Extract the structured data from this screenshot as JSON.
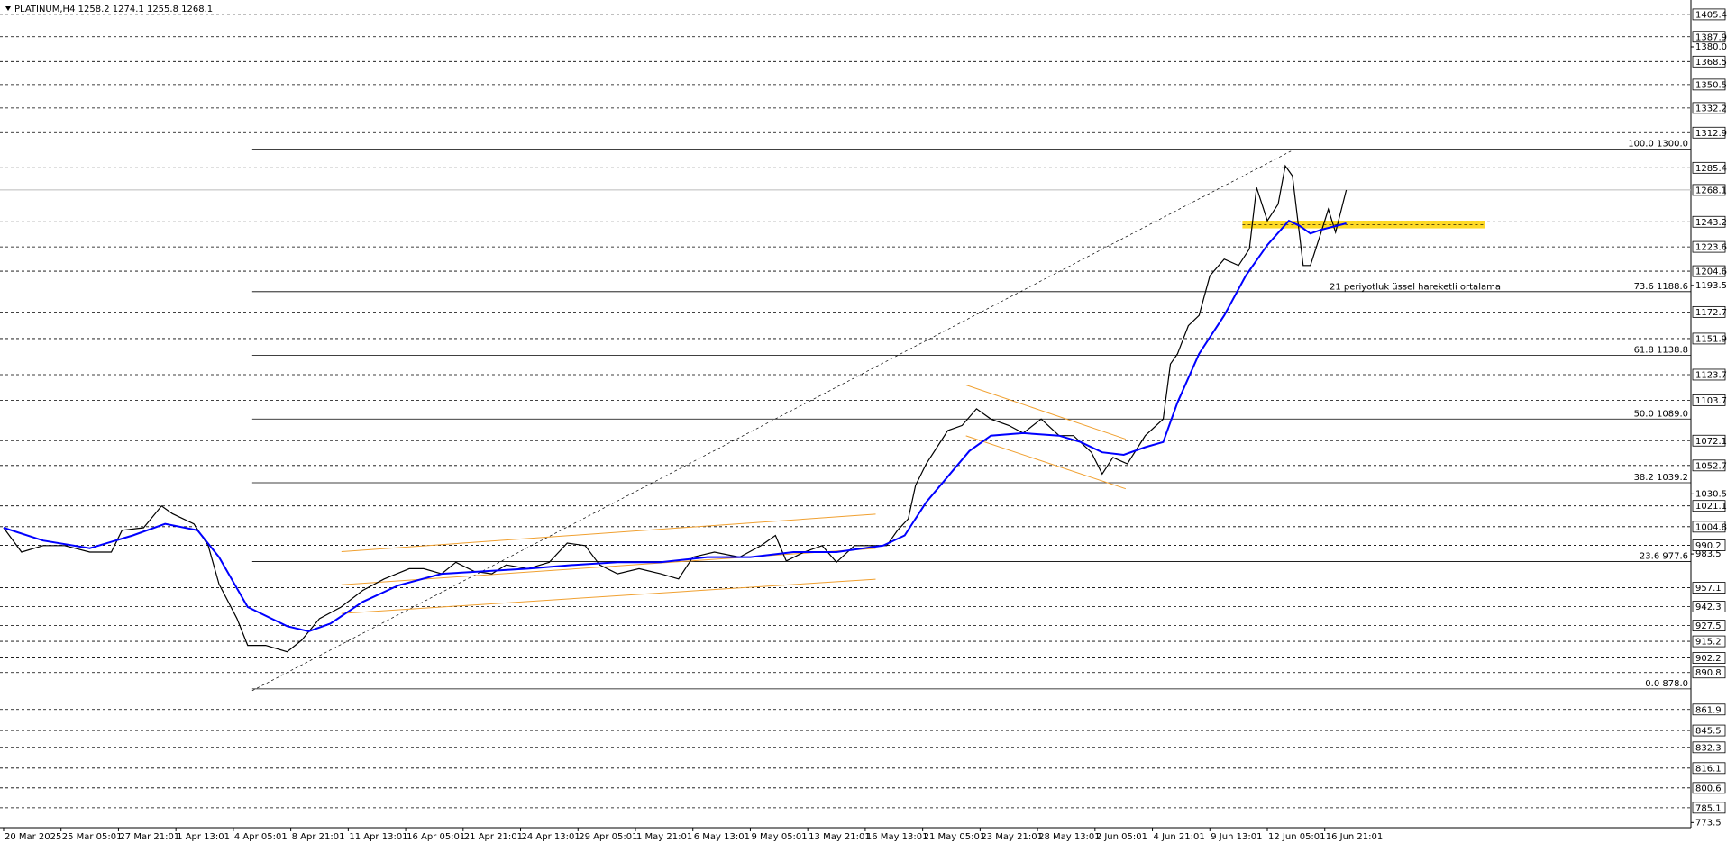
{
  "chart_data": {
    "type": "line",
    "title": "PLATINUM,H4  1258.2 1274.1 1255.8 1268.1",
    "annotation": "21 periyotluk üssel hareketli ortalama",
    "xlim": [
      -1,
      470
    ],
    "xticks": [
      {
        "value": 0,
        "label": "20 Mar 2025"
      },
      {
        "value": 16,
        "label": "25 Mar 05:01"
      },
      {
        "value": 32,
        "label": "27 Mar 21:01"
      },
      {
        "value": 48,
        "label": "1 Apr 13:01"
      },
      {
        "value": 64,
        "label": "4 Apr 05:01"
      },
      {
        "value": 80,
        "label": "8 Apr 21:01"
      },
      {
        "value": 96,
        "label": "11 Apr 13:01"
      },
      {
        "value": 112,
        "label": "16 Apr 05:01"
      },
      {
        "value": 128,
        "label": "21 Apr 21:01"
      },
      {
        "value": 144,
        "label": "24 Apr 13:01"
      },
      {
        "value": 160,
        "label": "29 Apr 05:01"
      },
      {
        "value": 176,
        "label": "1 May 21:01"
      },
      {
        "value": 192,
        "label": "6 May 13:01"
      },
      {
        "value": 208,
        "label": "9 May 05:01"
      },
      {
        "value": 224,
        "label": "13 May 21:01"
      },
      {
        "value": 240,
        "label": "16 May 13:01"
      },
      {
        "value": 256,
        "label": "21 May 05:01"
      },
      {
        "value": 272,
        "label": "23 May 21:01"
      },
      {
        "value": 288,
        "label": "28 May 13:01"
      },
      {
        "value": 304,
        "label": "2 Jun 05:01"
      },
      {
        "value": 320,
        "label": "4 Jun 21:01"
      },
      {
        "value": 336,
        "label": "9 Jun 13:01"
      },
      {
        "value": 352,
        "label": "12 Jun 05:01"
      },
      {
        "value": 368,
        "label": "16 Jun 21:01"
      }
    ],
    "ylim": [
      769.5,
      1416.6
    ],
    "yticks": [
      {
        "value": 1380,
        "label": "1380.0"
      },
      1193.5,
      1030.5,
      983.5,
      773.5
    ],
    "levels": [
      1405.4,
      1387.9,
      1368.5,
      1350.5,
      1332.2,
      1312.9,
      1285.4,
      1243.2,
      1223.6,
      1204.6,
      1172.7,
      1151.9,
      1123.7,
      1103.7,
      1072.1,
      1052.7,
      1021.1,
      1004.8,
      990.2,
      957.1,
      942.3,
      927.5,
      915.2,
      902.2,
      890.8,
      861.9,
      845.5,
      832.3,
      816.1,
      800.6,
      785.1
    ],
    "current_price": 1268.1,
    "fibonacci": [
      {
        "value": 1300,
        "label": "100.0 1300.0"
      },
      {
        "value": 1188.6,
        "label": "73.6 1188.6"
      },
      {
        "value": 1138.8,
        "label": "61.8 1138.8"
      },
      {
        "value": 1089,
        "label": "50.0 1089.0"
      },
      {
        "value": 1039.2,
        "label": "38.2 1039.2"
      },
      {
        "value": 977.6,
        "label": "23.6 977.6"
      },
      {
        "value": 878,
        "label": "0.0 878.0"
      }
    ],
    "series": [
      {
        "color": "#000000",
        "x": [
          0,
          5,
          11,
          17,
          24,
          30,
          33,
          39,
          44,
          47,
          53,
          57,
          60,
          65,
          68,
          73,
          79,
          83,
          88,
          94,
          100,
          106,
          113,
          117,
          122,
          126,
          131,
          136,
          140,
          146,
          152,
          157,
          162,
          166,
          171,
          177,
          183,
          188,
          192,
          198,
          205,
          211,
          215,
          218,
          223,
          228,
          232,
          237,
          241,
          246,
          249,
          252,
          254,
          257,
          260,
          263,
          267,
          271,
          275,
          280,
          284,
          289,
          294,
          298,
          303,
          306,
          309,
          313,
          318,
          323,
          325,
          327,
          330,
          333,
          336,
          340,
          344,
          347,
          349,
          352,
          355,
          357,
          359,
          362,
          364,
          367,
          369,
          371,
          374
        ],
        "values": [
          1004,
          985,
          990,
          990,
          985,
          985,
          1002,
          1004,
          1021,
          1015,
          1007,
          990,
          960,
          933,
          912,
          912,
          907,
          916,
          933,
          942,
          955,
          964,
          972,
          972,
          968,
          977,
          970,
          968,
          975,
          972,
          977,
          992,
          990,
          975,
          968,
          972,
          968,
          964,
          981,
          985,
          981,
          990,
          998,
          978,
          985,
          990,
          977,
          990,
          990,
          990,
          1002,
          1011,
          1037,
          1054,
          1067,
          1080,
          1084,
          1097,
          1089,
          1084,
          1078,
          1089,
          1076,
          1076,
          1063,
          1046,
          1059,
          1054,
          1076,
          1089,
          1132,
          1140,
          1162,
          1170,
          1201,
          1214,
          1209,
          1222,
          1270,
          1244,
          1257,
          1287,
          1279,
          1209,
          1209,
          1235,
          1253,
          1235,
          1268
        ]
      },
      {
        "color": "#0000ff",
        "x": [
          0,
          11,
          24,
          36,
          45,
          54,
          60,
          68,
          79,
          85,
          91,
          100,
          110,
          122,
          134,
          146,
          159,
          171,
          183,
          196,
          208,
          220,
          232,
          245,
          251,
          257,
          263,
          269,
          275,
          284,
          294,
          300,
          306,
          312,
          318,
          323,
          327,
          333,
          340,
          346,
          352,
          358,
          361,
          364,
          367,
          374
        ],
        "values": [
          1004,
          994,
          988,
          998,
          1007,
          1002,
          981,
          942,
          927,
          923,
          929,
          946,
          959,
          968,
          970,
          972,
          975,
          977,
          977,
          981,
          981,
          985,
          985,
          990,
          998,
          1024,
          1044,
          1064,
          1076,
          1078,
          1076,
          1071,
          1063,
          1061,
          1067,
          1071,
          1102,
          1140,
          1170,
          1201,
          1225,
          1244,
          1240,
          1234,
          1237,
          1242
        ]
      }
    ]
  }
}
